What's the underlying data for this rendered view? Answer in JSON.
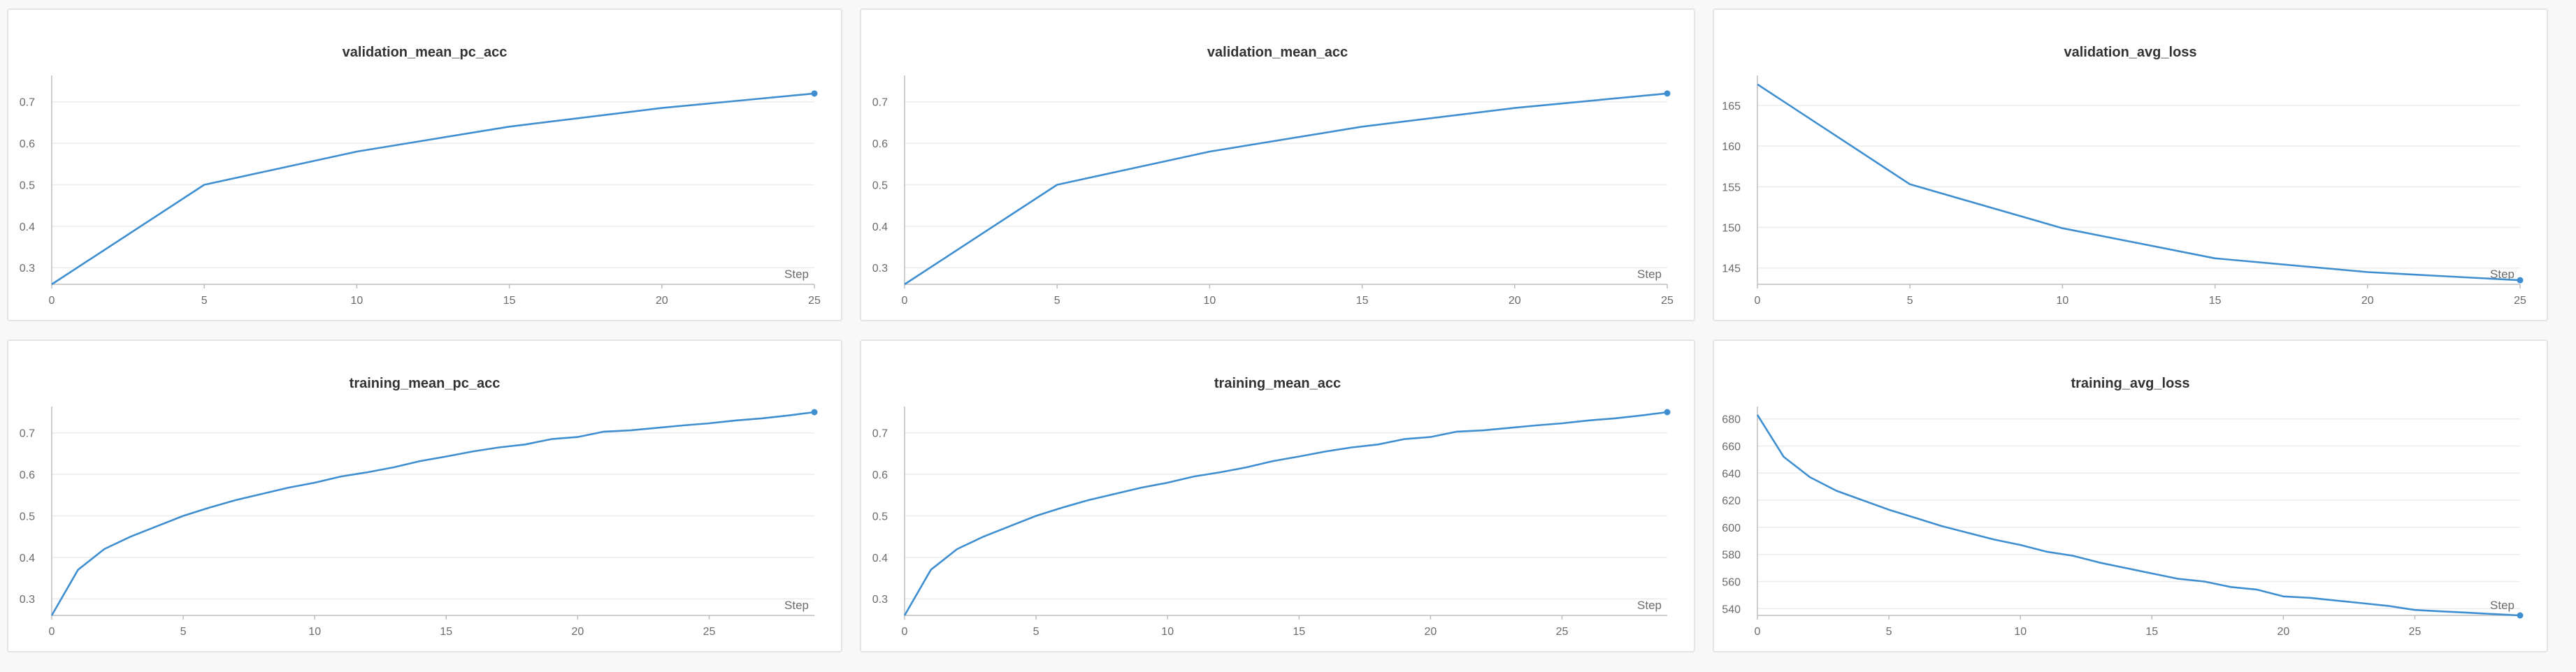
{
  "colors": {
    "line": "#3f8fd0",
    "grid": "#ececec",
    "axis": "#bdbdbd",
    "text": "#6b6b6b"
  },
  "chart_data": [
    {
      "type": "line",
      "title": "validation_mean_pc_acc",
      "xlabel": "Step",
      "xlim": [
        0,
        25
      ],
      "ylim": [
        0.26,
        0.75
      ],
      "xticks": [
        0,
        5,
        10,
        15,
        20,
        25
      ],
      "yticks": [
        0.3,
        0.4,
        0.5,
        0.6,
        0.7
      ],
      "x": [
        0,
        5,
        10,
        15,
        20,
        25
      ],
      "y": [
        0.26,
        0.5,
        0.58,
        0.64,
        0.685,
        0.72
      ]
    },
    {
      "type": "line",
      "title": "validation_mean_acc",
      "xlabel": "Step",
      "xlim": [
        0,
        25
      ],
      "ylim": [
        0.26,
        0.75
      ],
      "xticks": [
        0,
        5,
        10,
        15,
        20,
        25
      ],
      "yticks": [
        0.3,
        0.4,
        0.5,
        0.6,
        0.7
      ],
      "x": [
        0,
        5,
        10,
        15,
        20,
        25
      ],
      "y": [
        0.26,
        0.5,
        0.58,
        0.64,
        0.685,
        0.72
      ]
    },
    {
      "type": "line",
      "title": "validation_avg_loss",
      "xlabel": "Step",
      "xlim": [
        0,
        25
      ],
      "ylim": [
        143,
        168
      ],
      "xticks": [
        0,
        5,
        10,
        15,
        20,
        25
      ],
      "yticks": [
        145,
        150,
        155,
        160,
        165
      ],
      "x": [
        0,
        5,
        10,
        15,
        20,
        25
      ],
      "y": [
        167.6,
        155.3,
        149.9,
        146.2,
        144.5,
        143.5
      ]
    },
    {
      "type": "line",
      "title": "training_mean_pc_acc",
      "xlabel": "Step",
      "xlim": [
        0,
        29
      ],
      "ylim": [
        0.26,
        0.75
      ],
      "xticks": [
        0,
        5,
        10,
        15,
        20,
        25
      ],
      "yticks": [
        0.3,
        0.4,
        0.5,
        0.6,
        0.7
      ],
      "x": [
        0,
        1,
        2,
        3,
        4,
        5,
        6,
        7,
        8,
        9,
        10,
        11,
        12,
        13,
        14,
        15,
        16,
        17,
        18,
        19,
        20,
        21,
        22,
        23,
        24,
        25,
        26,
        27,
        28,
        29
      ],
      "y": [
        0.26,
        0.37,
        0.42,
        0.45,
        0.475,
        0.5,
        0.52,
        0.538,
        0.553,
        0.568,
        0.58,
        0.595,
        0.605,
        0.617,
        0.632,
        0.643,
        0.655,
        0.665,
        0.672,
        0.685,
        0.69,
        0.703,
        0.706,
        0.712,
        0.718,
        0.723,
        0.73,
        0.735,
        0.742,
        0.75
      ]
    },
    {
      "type": "line",
      "title": "training_mean_acc",
      "xlabel": "Step",
      "xlim": [
        0,
        29
      ],
      "ylim": [
        0.26,
        0.75
      ],
      "xticks": [
        0,
        5,
        10,
        15,
        20,
        25
      ],
      "yticks": [
        0.3,
        0.4,
        0.5,
        0.6,
        0.7
      ],
      "x": [
        0,
        1,
        2,
        3,
        4,
        5,
        6,
        7,
        8,
        9,
        10,
        11,
        12,
        13,
        14,
        15,
        16,
        17,
        18,
        19,
        20,
        21,
        22,
        23,
        24,
        25,
        26,
        27,
        28,
        29
      ],
      "y": [
        0.26,
        0.37,
        0.42,
        0.45,
        0.475,
        0.5,
        0.52,
        0.538,
        0.553,
        0.568,
        0.58,
        0.595,
        0.605,
        0.617,
        0.632,
        0.643,
        0.655,
        0.665,
        0.672,
        0.685,
        0.69,
        0.703,
        0.706,
        0.712,
        0.718,
        0.723,
        0.73,
        0.735,
        0.742,
        0.75
      ]
    },
    {
      "type": "line",
      "title": "training_avg_loss",
      "xlabel": "Step",
      "xlim": [
        0,
        29
      ],
      "ylim": [
        535,
        685
      ],
      "xticks": [
        0,
        5,
        10,
        15,
        20,
        25
      ],
      "yticks": [
        540,
        560,
        580,
        600,
        620,
        640,
        660,
        680
      ],
      "x": [
        0,
        1,
        2,
        3,
        4,
        5,
        6,
        7,
        8,
        9,
        10,
        11,
        12,
        13,
        14,
        15,
        16,
        17,
        18,
        19,
        20,
        21,
        22,
        23,
        24,
        25,
        26,
        27,
        28,
        29
      ],
      "y": [
        683,
        652,
        637,
        627,
        620,
        613,
        607,
        601,
        596,
        591,
        587,
        582,
        579,
        574,
        570,
        566,
        562,
        560,
        556,
        554,
        549,
        548,
        546,
        544,
        542,
        539,
        538,
        537,
        536,
        535
      ]
    }
  ]
}
